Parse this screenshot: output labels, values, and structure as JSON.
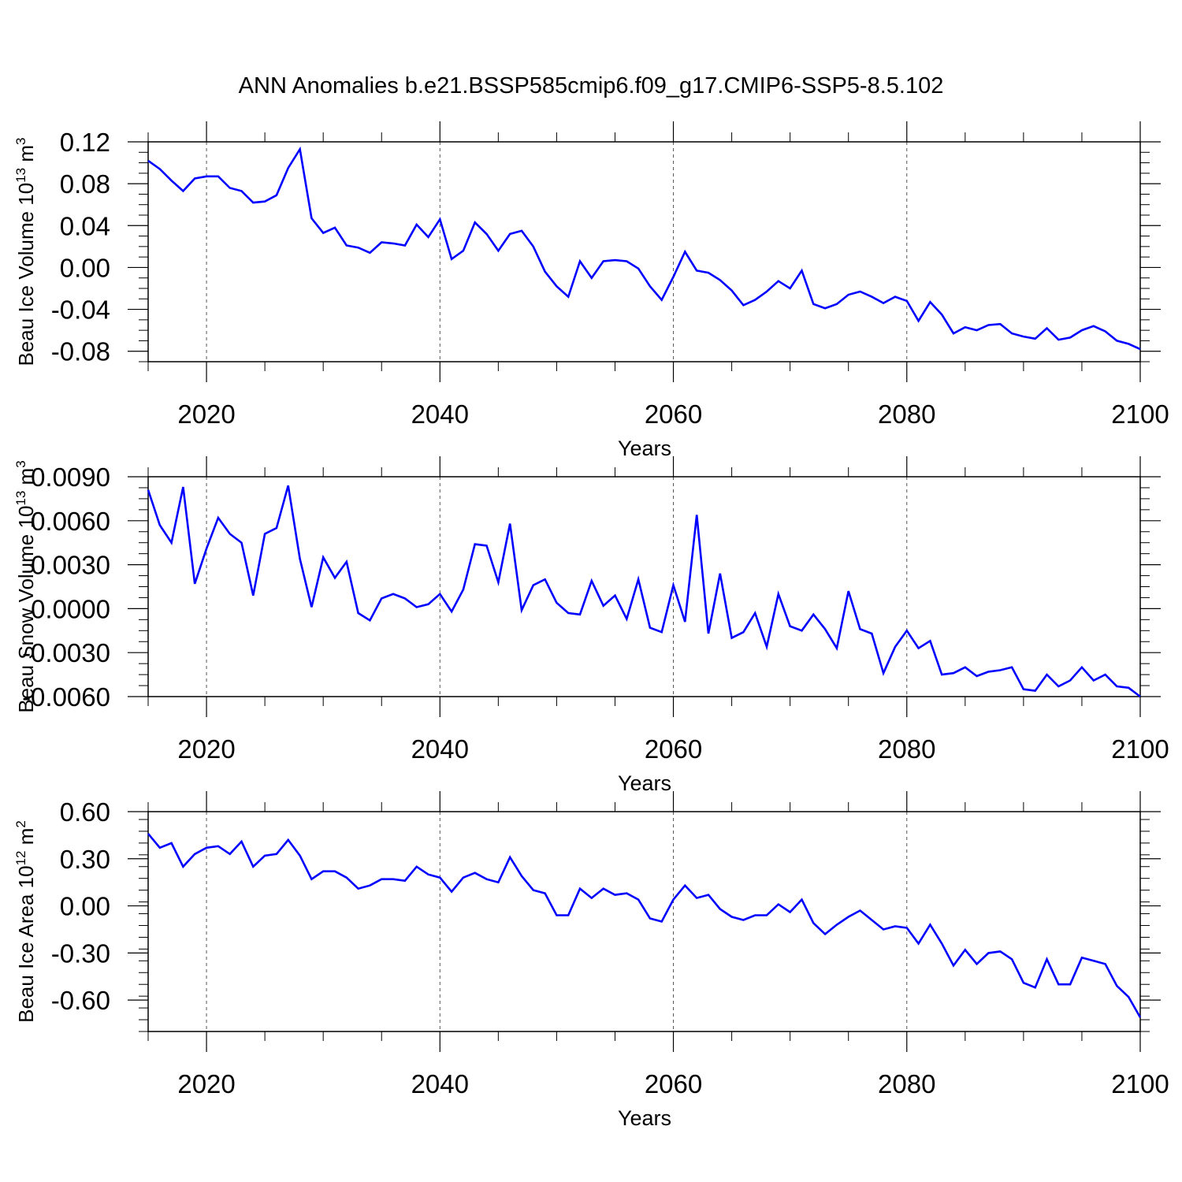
{
  "title": "ANN Anomalies b.e21.BSSP585cmip6.f09_g17.CMIP6-SSP5-8.5.102",
  "line_color": "#0000ff",
  "chart_data": [
    {
      "type": "line",
      "title": "",
      "xlabel": "Years",
      "ylabel": "Beau Ice Volume 10",
      "ylabel_exp": "13",
      "ylabel_unit": " m",
      "ylabel_unit_exp": "3",
      "xlim": [
        2015,
        2100
      ],
      "ylim": [
        -0.09,
        0.12
      ],
      "grid_x": [
        2020,
        2040,
        2060,
        2080
      ],
      "x_ticks": [
        2020,
        2040,
        2060,
        2080,
        2100
      ],
      "y_ticks": [
        0.12,
        0.08,
        0.04,
        0.0,
        -0.04,
        -0.08
      ],
      "y_tick_labels": [
        "0.12",
        "0.08",
        "0.04",
        "0.00",
        "-0.04",
        "-0.08"
      ],
      "x": [
        2015,
        2016,
        2017,
        2018,
        2019,
        2020,
        2021,
        2022,
        2023,
        2024,
        2025,
        2026,
        2027,
        2028,
        2029,
        2030,
        2031,
        2032,
        2033,
        2034,
        2035,
        2036,
        2037,
        2038,
        2039,
        2040,
        2041,
        2042,
        2043,
        2044,
        2045,
        2046,
        2047,
        2048,
        2049,
        2050,
        2051,
        2052,
        2053,
        2054,
        2055,
        2056,
        2057,
        2058,
        2059,
        2060,
        2061,
        2062,
        2063,
        2064,
        2065,
        2066,
        2067,
        2068,
        2069,
        2070,
        2071,
        2072,
        2073,
        2074,
        2075,
        2076,
        2077,
        2078,
        2079,
        2080,
        2081,
        2082,
        2083,
        2084,
        2085,
        2086,
        2087,
        2088,
        2089,
        2090,
        2091,
        2092,
        2093,
        2094,
        2095,
        2096,
        2097,
        2098,
        2099,
        2100
      ],
      "series": [
        {
          "values": [
            0.102,
            0.094,
            0.083,
            0.073,
            0.085,
            0.087,
            0.087,
            0.076,
            0.073,
            0.062,
            0.063,
            0.069,
            0.095,
            0.113,
            0.047,
            0.033,
            0.038,
            0.021,
            0.019,
            0.014,
            0.024,
            0.023,
            0.021,
            0.041,
            0.029,
            0.046,
            0.008,
            0.016,
            0.043,
            0.032,
            0.016,
            0.032,
            0.035,
            0.02,
            -0.004,
            -0.018,
            -0.028,
            0.006,
            -0.01,
            0.006,
            0.007,
            0.006,
            -0.001,
            -0.018,
            -0.031,
            -0.009,
            0.015,
            -0.003,
            -0.005,
            -0.012,
            -0.022,
            -0.036,
            -0.031,
            -0.023,
            -0.013,
            -0.02,
            -0.003,
            -0.035,
            -0.039,
            -0.035,
            -0.026,
            -0.023,
            -0.028,
            -0.034,
            -0.028,
            -0.032,
            -0.051,
            -0.033,
            -0.045,
            -0.063,
            -0.057,
            -0.06,
            -0.055,
            -0.054,
            -0.063,
            -0.066,
            -0.068,
            -0.058,
            -0.069,
            -0.067,
            -0.06,
            -0.056,
            -0.061,
            -0.07,
            -0.073,
            -0.078
          ]
        }
      ]
    },
    {
      "type": "line",
      "title": "",
      "xlabel": "Years",
      "ylabel": "Beau Snow Volume 10",
      "ylabel_exp": "13",
      "ylabel_unit": " m",
      "ylabel_unit_exp": "3",
      "xlim": [
        2015,
        2100
      ],
      "ylim": [
        -0.006,
        0.009
      ],
      "grid_x": [
        2020,
        2040,
        2060,
        2080
      ],
      "x_ticks": [
        2020,
        2040,
        2060,
        2080,
        2100
      ],
      "y_ticks": [
        0.009,
        0.006,
        0.003,
        0.0,
        -0.003,
        -0.006
      ],
      "y_tick_labels": [
        "0.0090",
        "0.0060",
        "0.0030",
        "0.0000",
        "-0.0030",
        "-0.0060"
      ],
      "x": [
        2015,
        2016,
        2017,
        2018,
        2019,
        2020,
        2021,
        2022,
        2023,
        2024,
        2025,
        2026,
        2027,
        2028,
        2029,
        2030,
        2031,
        2032,
        2033,
        2034,
        2035,
        2036,
        2037,
        2038,
        2039,
        2040,
        2041,
        2042,
        2043,
        2044,
        2045,
        2046,
        2047,
        2048,
        2049,
        2050,
        2051,
        2052,
        2053,
        2054,
        2055,
        2056,
        2057,
        2058,
        2059,
        2060,
        2061,
        2062,
        2063,
        2064,
        2065,
        2066,
        2067,
        2068,
        2069,
        2070,
        2071,
        2072,
        2073,
        2074,
        2075,
        2076,
        2077,
        2078,
        2079,
        2080,
        2081,
        2082,
        2083,
        2084,
        2085,
        2086,
        2087,
        2088,
        2089,
        2090,
        2091,
        2092,
        2093,
        2094,
        2095,
        2096,
        2097,
        2098,
        2099,
        2100
      ],
      "series": [
        {
          "values": [
            0.0081,
            0.0057,
            0.0045,
            0.0083,
            0.0017,
            0.0041,
            0.0062,
            0.0051,
            0.0045,
            0.0009,
            0.0051,
            0.0055,
            0.0084,
            0.0034,
            0.0001,
            0.0035,
            0.0021,
            0.0032,
            -0.0003,
            -0.0008,
            0.0007,
            0.001,
            0.0007,
            0.0001,
            0.0003,
            0.001,
            -0.0002,
            0.0013,
            0.0044,
            0.0043,
            0.0018,
            0.0058,
            -0.0001,
            0.0016,
            0.002,
            0.0004,
            -0.0003,
            -0.0004,
            0.0019,
            0.0002,
            0.0009,
            -0.0007,
            0.002,
            -0.0013,
            -0.0016,
            0.0016,
            -0.0009,
            0.0064,
            -0.0017,
            0.0024,
            -0.002,
            -0.0016,
            -0.0003,
            -0.0026,
            0.001,
            -0.0012,
            -0.0015,
            -0.0004,
            -0.0014,
            -0.0027,
            0.0012,
            -0.0014,
            -0.0017,
            -0.0044,
            -0.0026,
            -0.0015,
            -0.0027,
            -0.0022,
            -0.0045,
            -0.0044,
            -0.004,
            -0.0046,
            -0.0043,
            -0.0042,
            -0.004,
            -0.0055,
            -0.0056,
            -0.0045,
            -0.0053,
            -0.0049,
            -0.004,
            -0.0049,
            -0.0045,
            -0.0053,
            -0.0054,
            -0.006
          ]
        }
      ]
    },
    {
      "type": "line",
      "title": "",
      "xlabel": "Years",
      "ylabel": "Beau Ice Area 10",
      "ylabel_exp": "12",
      "ylabel_unit": " m",
      "ylabel_unit_exp": "2",
      "xlim": [
        2015,
        2100
      ],
      "ylim": [
        -0.8,
        0.6
      ],
      "grid_x": [
        2020,
        2040,
        2060,
        2080
      ],
      "x_ticks": [
        2020,
        2040,
        2060,
        2080,
        2100
      ],
      "y_ticks": [
        0.6,
        0.3,
        0.0,
        -0.3,
        -0.6
      ],
      "y_tick_labels": [
        "0.60",
        "0.30",
        "0.00",
        "-0.30",
        "-0.60"
      ],
      "x": [
        2015,
        2016,
        2017,
        2018,
        2019,
        2020,
        2021,
        2022,
        2023,
        2024,
        2025,
        2026,
        2027,
        2028,
        2029,
        2030,
        2031,
        2032,
        2033,
        2034,
        2035,
        2036,
        2037,
        2038,
        2039,
        2040,
        2041,
        2042,
        2043,
        2044,
        2045,
        2046,
        2047,
        2048,
        2049,
        2050,
        2051,
        2052,
        2053,
        2054,
        2055,
        2056,
        2057,
        2058,
        2059,
        2060,
        2061,
        2062,
        2063,
        2064,
        2065,
        2066,
        2067,
        2068,
        2069,
        2070,
        2071,
        2072,
        2073,
        2074,
        2075,
        2076,
        2077,
        2078,
        2079,
        2080,
        2081,
        2082,
        2083,
        2084,
        2085,
        2086,
        2087,
        2088,
        2089,
        2090,
        2091,
        2092,
        2093,
        2094,
        2095,
        2096,
        2097,
        2098,
        2099,
        2100
      ],
      "series": [
        {
          "values": [
            0.46,
            0.37,
            0.4,
            0.25,
            0.33,
            0.37,
            0.38,
            0.33,
            0.41,
            0.25,
            0.32,
            0.33,
            0.42,
            0.32,
            0.17,
            0.22,
            0.22,
            0.18,
            0.11,
            0.13,
            0.17,
            0.17,
            0.16,
            0.25,
            0.2,
            0.18,
            0.09,
            0.18,
            0.21,
            0.17,
            0.15,
            0.31,
            0.19,
            0.1,
            0.08,
            -0.06,
            -0.06,
            0.11,
            0.05,
            0.11,
            0.07,
            0.08,
            0.04,
            -0.08,
            -0.1,
            0.04,
            0.13,
            0.05,
            0.07,
            -0.02,
            -0.07,
            -0.09,
            -0.06,
            -0.06,
            0.01,
            -0.04,
            0.04,
            -0.11,
            -0.18,
            -0.12,
            -0.07,
            -0.03,
            -0.09,
            -0.15,
            -0.13,
            -0.14,
            -0.24,
            -0.12,
            -0.24,
            -0.38,
            -0.28,
            -0.37,
            -0.3,
            -0.29,
            -0.34,
            -0.49,
            -0.52,
            -0.34,
            -0.5,
            -0.5,
            -0.33,
            -0.35,
            -0.37,
            -0.51,
            -0.58,
            -0.71
          ]
        }
      ]
    }
  ]
}
